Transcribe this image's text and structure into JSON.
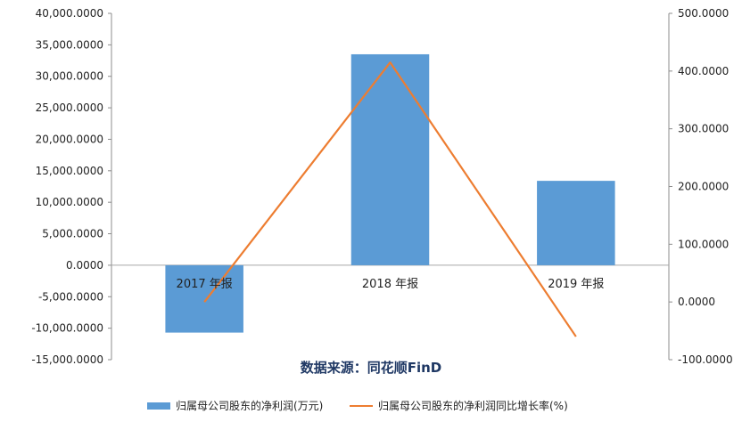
{
  "chart_data": {
    "type": "bar",
    "categories": [
      "2017 年报",
      "2018 年报",
      "2019 年报"
    ],
    "series": [
      {
        "name": "归属母公司股东的净利润(万元)",
        "type": "bar",
        "axis": "left",
        "color": "#5b9bd5",
        "values": [
          -10700,
          33500,
          13400
        ]
      },
      {
        "name": "归属母公司股东的净利润同比增长率(%)",
        "type": "line",
        "axis": "right",
        "color": "#ed7d31",
        "values": [
          0,
          415,
          -60
        ]
      }
    ],
    "y_left": {
      "min": -15000,
      "max": 40000,
      "step": 5000,
      "tick_labels": [
        "-15,000.0000",
        "-10,000.0000",
        "-5,000.0000",
        "0.0000",
        "5,000.0000",
        "10,000.0000",
        "15,000.0000",
        "20,000.0000",
        "25,000.0000",
        "30,000.0000",
        "35,000.0000",
        "40,000.0000"
      ]
    },
    "y_right": {
      "min": -100,
      "max": 500,
      "step": 100,
      "tick_labels": [
        "-100.0000",
        "0.0000",
        "100.0000",
        "200.0000",
        "300.0000",
        "400.0000",
        "500.0000"
      ]
    },
    "source_note": "数据来源：同花顺FinD",
    "grid": false,
    "legend": "bottom"
  }
}
